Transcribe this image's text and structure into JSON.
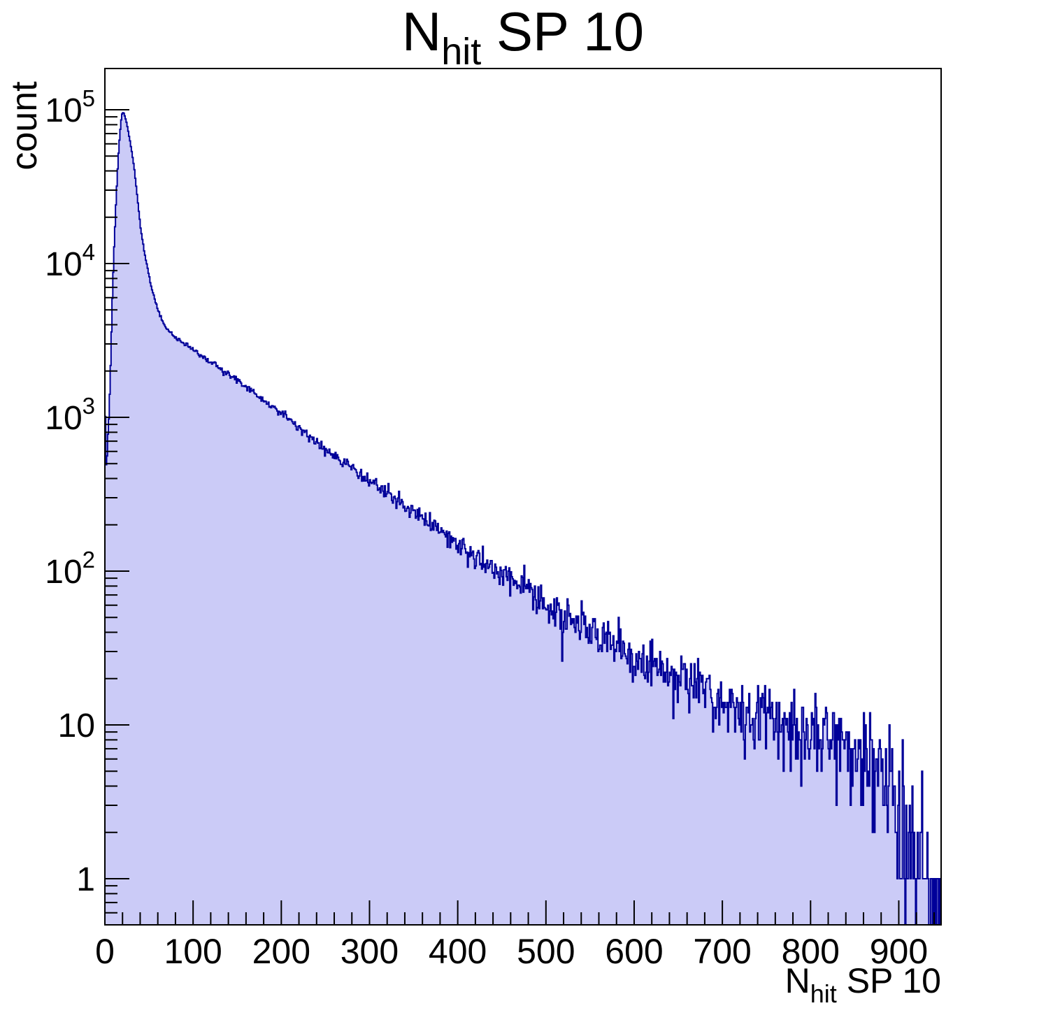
{
  "chart_data": {
    "type": "bar",
    "subtype": "histogram-log-y",
    "title": {
      "prefix": "N",
      "subscript": "hit",
      "suffix": " SP 10"
    },
    "y_axis": {
      "label": "count",
      "scale": "log",
      "range": [
        0.5,
        185000
      ],
      "pixels_per_decade_hint": 220,
      "ticks": [
        {
          "value": 1,
          "base": "1",
          "exp": ""
        },
        {
          "value": 10,
          "base": "10",
          "exp": ""
        },
        {
          "value": 100,
          "base": "10",
          "exp": "2"
        },
        {
          "value": 1000,
          "base": "10",
          "exp": "3"
        },
        {
          "value": 10000,
          "base": "10",
          "exp": "4"
        },
        {
          "value": 100000,
          "base": "10",
          "exp": "5"
        }
      ],
      "minor_tick_multipliers": [
        2,
        3,
        4,
        5,
        6,
        7,
        8,
        9
      ]
    },
    "x_axis": {
      "label": {
        "prefix": "N",
        "subscript": "hit",
        "suffix": " SP 10"
      },
      "range": [
        0,
        948
      ],
      "major_tick_step": 100,
      "minor_tick_step": 20,
      "tick_labels": [
        "0",
        "100",
        "200",
        "300",
        "400",
        "500",
        "600",
        "700",
        "800",
        "900"
      ]
    },
    "bins": {
      "width": 1,
      "count": 948
    },
    "peak": {
      "x": 20,
      "count": 97000
    },
    "envelope_log_anchors": [
      [
        0,
        2600
      ],
      [
        1,
        420
      ],
      [
        3,
        650
      ],
      [
        5,
        1100
      ],
      [
        7,
        2800
      ],
      [
        9,
        7500
      ],
      [
        11,
        15000
      ],
      [
        13,
        28000
      ],
      [
        15,
        47000
      ],
      [
        17,
        70000
      ],
      [
        19,
        92000
      ],
      [
        21,
        97000
      ],
      [
        24,
        86000
      ],
      [
        27,
        70000
      ],
      [
        30,
        56000
      ],
      [
        33,
        43000
      ],
      [
        36,
        30000
      ],
      [
        40,
        18000
      ],
      [
        44,
        12500
      ],
      [
        48,
        9500
      ],
      [
        54,
        6600
      ],
      [
        60,
        5000
      ],
      [
        68,
        3900
      ],
      [
        78,
        3400
      ],
      [
        90,
        3000
      ],
      [
        110,
        2500
      ],
      [
        130,
        2100
      ],
      [
        157,
        1630
      ],
      [
        180,
        1280
      ],
      [
        197,
        1100
      ],
      [
        216,
        900
      ],
      [
        236,
        710
      ],
      [
        256,
        580
      ],
      [
        276,
        480
      ],
      [
        296,
        400
      ],
      [
        316,
        340
      ],
      [
        336,
        280
      ],
      [
        355,
        230
      ],
      [
        375,
        190
      ],
      [
        400,
        152
      ],
      [
        435,
        110
      ],
      [
        474,
        78
      ],
      [
        514,
        52
      ],
      [
        553,
        40
      ],
      [
        593,
        29
      ],
      [
        633,
        23
      ],
      [
        672,
        18
      ],
      [
        712,
        13.5
      ],
      [
        751,
        11.5
      ],
      [
        791,
        9.7
      ],
      [
        830,
        8
      ],
      [
        860,
        6.5
      ],
      [
        885,
        5
      ],
      [
        900,
        3.5
      ],
      [
        915,
        2.2
      ],
      [
        930,
        1.2
      ],
      [
        940,
        0.8
      ],
      [
        948,
        0.5
      ]
    ],
    "noise": {
      "model": "poisson",
      "seed": 20110
    },
    "style": {
      "line_color": "#000099",
      "fill_color": "#CBCBF7",
      "axis_color": "#000000",
      "background": "#FFFFFF",
      "line_width": 2
    },
    "legend": {
      "visible": false
    },
    "grid": {
      "visible": false
    }
  }
}
